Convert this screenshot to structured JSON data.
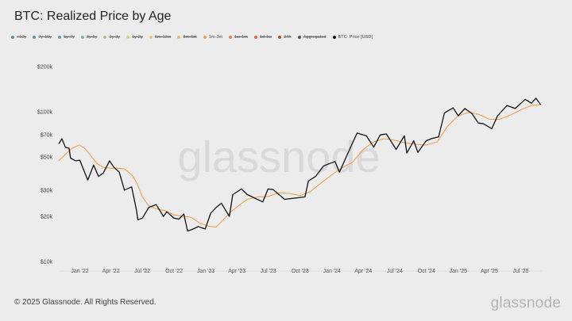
{
  "page": {
    "title": "BTC: Realized Price by Age"
  },
  "legend": [
    {
      "label": ">10y",
      "color": "#5b8fa8",
      "active": false
    },
    {
      "label": "7y-10y",
      "color": "#4a9aa0",
      "active": false
    },
    {
      "label": "5y-7y",
      "color": "#5aa0b0",
      "active": false
    },
    {
      "label": "3y-5y",
      "color": "#7bb3a3",
      "active": false
    },
    {
      "label": "2y-3y",
      "color": "#a8c28a",
      "active": false
    },
    {
      "label": "1y-2y",
      "color": "#d8d478",
      "active": false
    },
    {
      "label": "6m-12m",
      "color": "#e6c57a",
      "active": false
    },
    {
      "label": "3m-6m",
      "color": "#edb46d",
      "active": false
    },
    {
      "label": "1m-3m",
      "color": "#f0a04b",
      "active": true
    },
    {
      "label": "1w-1m",
      "color": "#ec7f4a",
      "active": false
    },
    {
      "label": "1d-1w",
      "color": "#e4663e",
      "active": false
    },
    {
      "label": "24h",
      "color": "#c94a2a",
      "active": false
    },
    {
      "label": "Aggregated",
      "color": "#555555",
      "active": false
    },
    {
      "label": "BTC: Price [USD]",
      "color": "#111111",
      "active": true
    }
  ],
  "footer": {
    "copyright": "© 2025 Glassnode. All Rights Reserved."
  },
  "brand": {
    "watermark": "glassnode",
    "logo": "glassnode"
  },
  "chart_data": {
    "type": "line",
    "title": "BTC: Realized Price by Age",
    "xlabel": "",
    "ylabel": "",
    "y_scale": "log",
    "ylim": [
      10000,
      200000
    ],
    "xlim": [
      "2021-11-01",
      "2025-08-31"
    ],
    "y_ticks": [
      {
        "value": 10000,
        "label": "$10k"
      },
      {
        "value": 20000,
        "label": "$20k"
      },
      {
        "value": 30000,
        "label": "$30k"
      },
      {
        "value": 50000,
        "label": "$50k"
      },
      {
        "value": 70000,
        "label": "$70k"
      },
      {
        "value": 100000,
        "label": "$100k"
      },
      {
        "value": 200000,
        "label": "$200k"
      }
    ],
    "x_ticks": [
      {
        "date": "2022-01-01",
        "label": "Jan '22"
      },
      {
        "date": "2022-04-01",
        "label": "Apr '22"
      },
      {
        "date": "2022-07-01",
        "label": "Jul '22"
      },
      {
        "date": "2022-10-01",
        "label": "Oct '22"
      },
      {
        "date": "2023-01-01",
        "label": "Jan '23"
      },
      {
        "date": "2023-04-01",
        "label": "Apr '23"
      },
      {
        "date": "2023-07-01",
        "label": "Jul '23"
      },
      {
        "date": "2023-10-01",
        "label": "Oct '23"
      },
      {
        "date": "2024-01-01",
        "label": "Jan '24"
      },
      {
        "date": "2024-04-01",
        "label": "Apr '24"
      },
      {
        "date": "2024-07-01",
        "label": "Jul '24"
      },
      {
        "date": "2024-10-01",
        "label": "Oct '24"
      },
      {
        "date": "2025-01-01",
        "label": "Jan '25"
      },
      {
        "date": "2025-04-01",
        "label": "Apr '25"
      },
      {
        "date": "2025-07-01",
        "label": "Jul '25"
      }
    ],
    "grid": false,
    "legend_position": "top-left",
    "series": [
      {
        "name": "1m-3m",
        "color": "#f0a04b",
        "points": [
          [
            "2021-11-01",
            47000
          ],
          [
            "2021-11-20",
            52000
          ],
          [
            "2021-12-10",
            57000
          ],
          [
            "2021-12-31",
            60000
          ],
          [
            "2022-01-15",
            57000
          ],
          [
            "2022-02-01",
            51000
          ],
          [
            "2022-02-20",
            45000
          ],
          [
            "2022-03-10",
            42500
          ],
          [
            "2022-04-01",
            42000
          ],
          [
            "2022-04-20",
            42000
          ],
          [
            "2022-05-10",
            41500
          ],
          [
            "2022-05-31",
            38000
          ],
          [
            "2022-06-15",
            33500
          ],
          [
            "2022-07-01",
            27000
          ],
          [
            "2022-07-20",
            23500
          ],
          [
            "2022-08-10",
            22500
          ],
          [
            "2022-09-01",
            22000
          ],
          [
            "2022-10-01",
            20500
          ],
          [
            "2022-11-01",
            20000
          ],
          [
            "2022-11-20",
            19700
          ],
          [
            "2022-12-15",
            18000
          ],
          [
            "2023-01-10",
            17200
          ],
          [
            "2023-01-31",
            17000
          ],
          [
            "2023-02-20",
            19000
          ],
          [
            "2023-03-15",
            21500
          ],
          [
            "2023-04-10",
            24000
          ],
          [
            "2023-05-01",
            26000
          ],
          [
            "2023-06-01",
            27000
          ],
          [
            "2023-07-01",
            27200
          ],
          [
            "2023-08-01",
            28800
          ],
          [
            "2023-09-01",
            28500
          ],
          [
            "2023-10-01",
            27500
          ],
          [
            "2023-11-01",
            29500
          ],
          [
            "2023-12-01",
            33500
          ],
          [
            "2024-01-01",
            38000
          ],
          [
            "2024-02-01",
            42500
          ],
          [
            "2024-03-01",
            46000
          ],
          [
            "2024-04-01",
            56000
          ],
          [
            "2024-05-01",
            63000
          ],
          [
            "2024-06-01",
            66000
          ],
          [
            "2024-07-01",
            64500
          ],
          [
            "2024-08-01",
            62000
          ],
          [
            "2024-09-01",
            60500
          ],
          [
            "2024-10-01",
            60000
          ],
          [
            "2024-11-01",
            63000
          ],
          [
            "2024-12-01",
            80000
          ],
          [
            "2025-01-01",
            94000
          ],
          [
            "2025-02-01",
            99000
          ],
          [
            "2025-03-01",
            96000
          ],
          [
            "2025-04-01",
            89000
          ],
          [
            "2025-05-01",
            89000
          ],
          [
            "2025-06-01",
            95000
          ],
          [
            "2025-07-01",
            103000
          ],
          [
            "2025-08-01",
            110000
          ],
          [
            "2025-08-25",
            111000
          ]
        ]
      },
      {
        "name": "BTC: Price [USD]",
        "color": "#111111",
        "points": [
          [
            "2021-11-01",
            61000
          ],
          [
            "2021-11-10",
            66000
          ],
          [
            "2021-11-20",
            58000
          ],
          [
            "2021-12-01",
            57000
          ],
          [
            "2021-12-05",
            49000
          ],
          [
            "2021-12-20",
            47000
          ],
          [
            "2022-01-01",
            47500
          ],
          [
            "2022-01-10",
            42000
          ],
          [
            "2022-01-24",
            35000
          ],
          [
            "2022-02-10",
            44000
          ],
          [
            "2022-02-24",
            37000
          ],
          [
            "2022-03-10",
            39000
          ],
          [
            "2022-03-28",
            47000
          ],
          [
            "2022-04-10",
            42500
          ],
          [
            "2022-04-25",
            39500
          ],
          [
            "2022-05-10",
            30000
          ],
          [
            "2022-05-31",
            31500
          ],
          [
            "2022-06-14",
            22000
          ],
          [
            "2022-06-18",
            19000
          ],
          [
            "2022-07-01",
            19500
          ],
          [
            "2022-07-20",
            23000
          ],
          [
            "2022-08-10",
            24000
          ],
          [
            "2022-08-31",
            20000
          ],
          [
            "2022-09-10",
            21500
          ],
          [
            "2022-09-30",
            19500
          ],
          [
            "2022-10-15",
            19200
          ],
          [
            "2022-10-29",
            20800
          ],
          [
            "2022-11-09",
            16000
          ],
          [
            "2022-11-20",
            16300
          ],
          [
            "2022-12-10",
            17100
          ],
          [
            "2022-12-30",
            16500
          ],
          [
            "2023-01-15",
            21000
          ],
          [
            "2023-01-31",
            23000
          ],
          [
            "2023-02-15",
            24500
          ],
          [
            "2023-03-10",
            20000
          ],
          [
            "2023-03-20",
            28000
          ],
          [
            "2023-04-14",
            30500
          ],
          [
            "2023-05-01",
            28000
          ],
          [
            "2023-06-15",
            25000
          ],
          [
            "2023-06-30",
            30500
          ],
          [
            "2023-07-15",
            30200
          ],
          [
            "2023-08-17",
            26000
          ],
          [
            "2023-09-15",
            26500
          ],
          [
            "2023-10-15",
            27000
          ],
          [
            "2023-10-25",
            34500
          ],
          [
            "2023-11-15",
            37000
          ],
          [
            "2023-12-08",
            43500
          ],
          [
            "2024-01-10",
            46500
          ],
          [
            "2024-01-23",
            39500
          ],
          [
            "2024-02-15",
            52000
          ],
          [
            "2024-03-14",
            72000
          ],
          [
            "2024-04-10",
            69000
          ],
          [
            "2024-05-01",
            58000
          ],
          [
            "2024-05-20",
            70000
          ],
          [
            "2024-06-07",
            71000
          ],
          [
            "2024-07-05",
            56000
          ],
          [
            "2024-07-29",
            69000
          ],
          [
            "2024-08-05",
            53000
          ],
          [
            "2024-08-25",
            64000
          ],
          [
            "2024-09-06",
            53500
          ],
          [
            "2024-09-30",
            64000
          ],
          [
            "2024-10-15",
            66000
          ],
          [
            "2024-11-05",
            68000
          ],
          [
            "2024-11-22",
            98000
          ],
          [
            "2024-12-17",
            106000
          ],
          [
            "2025-01-01",
            94000
          ],
          [
            "2025-01-20",
            105000
          ],
          [
            "2025-02-10",
            97000
          ],
          [
            "2025-02-28",
            84000
          ],
          [
            "2025-03-15",
            83000
          ],
          [
            "2025-04-08",
            77000
          ],
          [
            "2025-04-25",
            94000
          ],
          [
            "2025-05-22",
            110000
          ],
          [
            "2025-06-15",
            105000
          ],
          [
            "2025-07-14",
            121000
          ],
          [
            "2025-08-01",
            114000
          ],
          [
            "2025-08-14",
            123000
          ],
          [
            "2025-08-28",
            111000
          ]
        ]
      }
    ]
  }
}
